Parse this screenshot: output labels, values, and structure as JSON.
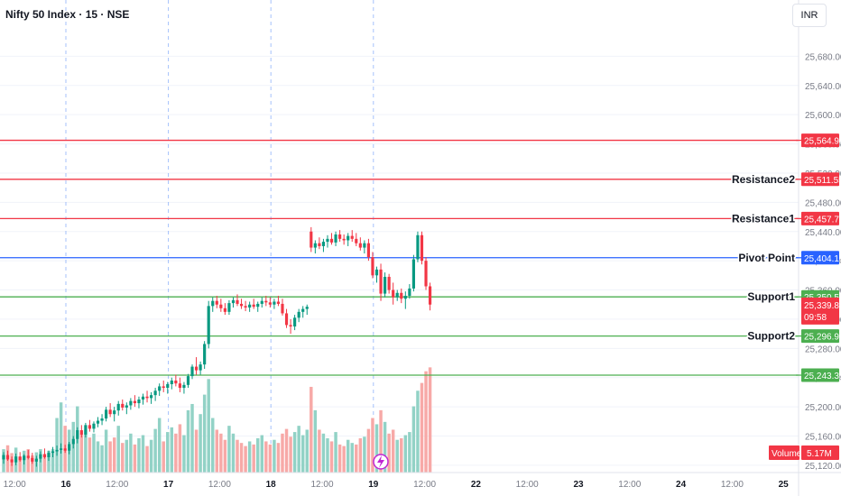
{
  "header": {
    "symbol": "Nifty 50 Index · 15 · NSE",
    "currency": "INR"
  },
  "colors": {
    "up": "#089981",
    "down": "#f23645",
    "resistance": "#f23645",
    "pivot": "#2962ff",
    "support": "#4caf50",
    "grid": "#f0f3fa",
    "session": "#5b8ff9",
    "text": "#131722",
    "axis_text": "#787b86",
    "volume_up": "#92d2c6",
    "volume_down": "#f7a9a7",
    "volume_tag": "#f23645"
  },
  "chart_data": {
    "type": "candlestick",
    "y_ticks": [
      "25,120.00",
      "25,160.00",
      "25,200.00",
      "25,240.00",
      "25,280.00",
      "25,320.00",
      "25,360.00",
      "25,400.00",
      "25,440.00",
      "25,480.00",
      "25,520.00",
      "25,560.00",
      "25,600.00",
      "25,640.00",
      "25,680.00"
    ],
    "y_tick_values": [
      25120,
      25160,
      25200,
      25240,
      25280,
      25320,
      25360,
      25400,
      25440,
      25480,
      25520,
      25560,
      25600,
      25640,
      25680
    ],
    "ylim": [
      25110,
      25720
    ],
    "x_ticks": [
      {
        "label": "12:00",
        "bold": false
      },
      {
        "label": "16",
        "bold": true
      },
      {
        "label": "12:00",
        "bold": false
      },
      {
        "label": "17",
        "bold": true
      },
      {
        "label": "12:00",
        "bold": false
      },
      {
        "label": "18",
        "bold": true
      },
      {
        "label": "12:00",
        "bold": false
      },
      {
        "label": "19",
        "bold": true
      },
      {
        "label": "12:00",
        "bold": false
      },
      {
        "label": "22",
        "bold": true
      },
      {
        "label": "12:00",
        "bold": false
      },
      {
        "label": "23",
        "bold": true
      },
      {
        "label": "12:00",
        "bold": false
      },
      {
        "label": "24",
        "bold": true
      },
      {
        "label": "12:00",
        "bold": false
      },
      {
        "label": "25",
        "bold": true
      }
    ],
    "session_markers": [
      "16",
      "17",
      "18",
      "19"
    ],
    "levels": [
      {
        "label": "",
        "value": 25564.95,
        "price": "25,564.95",
        "kind": "resistance"
      },
      {
        "label": "Resistance2",
        "value": 25511.55,
        "price": "25,511.55",
        "kind": "resistance"
      },
      {
        "label": "Resistance1",
        "value": 25457.75,
        "price": "25,457.75",
        "kind": "resistance"
      },
      {
        "label": "Pivot Point",
        "value": 25404.15,
        "price": "25,404.15",
        "kind": "pivot"
      },
      {
        "label": "Support1",
        "value": 25350.55,
        "price": "25,350.55",
        "kind": "support"
      },
      {
        "label": "Support2",
        "value": 25296.95,
        "price": "25,296.95",
        "kind": "support"
      },
      {
        "label": "",
        "value": 25243.35,
        "price": "25,243.35",
        "kind": "support"
      }
    ],
    "last_price": {
      "value": 25339.85,
      "price": "25,339.85",
      "countdown": "09:58"
    },
    "volume": {
      "label": "Volume",
      "value": "5.17M"
    },
    "candles_per_day": 25,
    "candles": [
      [
        25128,
        25138,
        25122,
        25134
      ],
      [
        25134,
        25140,
        25126,
        25128
      ],
      [
        25128,
        25132,
        25119,
        25124
      ],
      [
        25124,
        25136,
        25120,
        25132
      ],
      [
        25132,
        25138,
        25125,
        25127
      ],
      [
        25127,
        25135,
        25121,
        25133
      ],
      [
        25133,
        25141,
        25128,
        25130
      ],
      [
        25130,
        25137,
        25122,
        25125
      ],
      [
        25125,
        25133,
        25118,
        25129
      ],
      [
        25129,
        25139,
        25124,
        25135
      ],
      [
        25135,
        25143,
        25129,
        25131
      ],
      [
        25131,
        25140,
        25126,
        25137
      ],
      [
        25137,
        25145,
        25131,
        25139
      ],
      [
        25139,
        25147,
        25133,
        25141
      ],
      [
        25141,
        25150,
        25136,
        25143
      ],
      [
        25143,
        25148,
        25137,
        25140
      ],
      [
        25140,
        25152,
        25135,
        25149
      ],
      [
        25149,
        25160,
        25143,
        25156
      ],
      [
        25156,
        25172,
        25150,
        25168
      ],
      [
        25168,
        25175,
        25158,
        25162
      ],
      [
        25162,
        25178,
        25158,
        25175
      ],
      [
        25175,
        25182,
        25166,
        25170
      ],
      [
        25170,
        25180,
        25165,
        25177
      ],
      [
        25177,
        25186,
        25172,
        25181
      ],
      [
        25181,
        25190,
        25175,
        25184
      ],
      [
        25184,
        25200,
        25180,
        25196
      ],
      [
        25196,
        25205,
        25186,
        25190
      ],
      [
        25190,
        25200,
        25180,
        25195
      ],
      [
        25195,
        25208,
        25188,
        25204
      ],
      [
        25204,
        25210,
        25195,
        25199
      ],
      [
        25199,
        25206,
        25190,
        25202
      ],
      [
        25202,
        25212,
        25196,
        25208
      ],
      [
        25208,
        25216,
        25200,
        25205
      ],
      [
        25205,
        25214,
        25198,
        25210
      ],
      [
        25210,
        25218,
        25203,
        25214
      ],
      [
        25214,
        25222,
        25206,
        25212
      ],
      [
        25212,
        25220,
        25204,
        25216
      ],
      [
        25216,
        25226,
        25208,
        25222
      ],
      [
        25222,
        25232,
        25215,
        25228
      ],
      [
        25228,
        25236,
        25220,
        25226
      ],
      [
        25226,
        25234,
        25218,
        25231
      ],
      [
        25231,
        25240,
        25224,
        25236
      ],
      [
        25236,
        25244,
        25228,
        25232
      ],
      [
        25232,
        25240,
        25220,
        25226
      ],
      [
        25226,
        25234,
        25218,
        25230
      ],
      [
        25230,
        25245,
        25226,
        25242
      ],
      [
        25242,
        25258,
        25238,
        25255
      ],
      [
        25255,
        25268,
        25244,
        25250
      ],
      [
        25250,
        25262,
        25244,
        25258
      ],
      [
        25258,
        25290,
        25252,
        25286
      ],
      [
        25286,
        25345,
        25280,
        25338
      ],
      [
        25338,
        25350,
        25330,
        25345
      ],
      [
        25345,
        25352,
        25335,
        25340
      ],
      [
        25340,
        25348,
        25330,
        25335
      ],
      [
        25335,
        25342,
        25326,
        25330
      ],
      [
        25330,
        25346,
        25326,
        25342
      ],
      [
        25342,
        25350,
        25336,
        25346
      ],
      [
        25346,
        25354,
        25338,
        25341
      ],
      [
        25341,
        25348,
        25334,
        25338
      ],
      [
        25338,
        25345,
        25331,
        25336
      ],
      [
        25336,
        25344,
        25330,
        25340
      ],
      [
        25340,
        25348,
        25334,
        25337
      ],
      [
        25337,
        25344,
        25330,
        25341
      ],
      [
        25341,
        25350,
        25336,
        25345
      ],
      [
        25345,
        25352,
        25338,
        25343
      ],
      [
        25343,
        25350,
        25336,
        25340
      ],
      [
        25340,
        25348,
        25334,
        25344
      ],
      [
        25344,
        25352,
        25338,
        25341
      ],
      [
        25341,
        25348,
        25325,
        25328
      ],
      [
        25328,
        25334,
        25308,
        25312
      ],
      [
        25312,
        25320,
        25300,
        25310
      ],
      [
        25310,
        25326,
        25305,
        25322
      ],
      [
        25322,
        25334,
        25316,
        25330
      ],
      [
        25330,
        25338,
        25322,
        25334
      ],
      [
        25334,
        25340,
        25326,
        25337
      ],
      [
        25440,
        25446,
        25412,
        25418
      ],
      [
        25418,
        25428,
        25410,
        25424
      ],
      [
        25424,
        25432,
        25416,
        25420
      ],
      [
        25420,
        25430,
        25412,
        25426
      ],
      [
        25426,
        25435,
        25418,
        25430
      ],
      [
        25430,
        25438,
        25422,
        25425
      ],
      [
        25425,
        25440,
        25420,
        25436
      ],
      [
        25436,
        25442,
        25426,
        25430
      ],
      [
        25430,
        25436,
        25422,
        25428
      ],
      [
        25428,
        25438,
        25420,
        25434
      ],
      [
        25434,
        25442,
        25426,
        25430
      ],
      [
        25430,
        25438,
        25420,
        25424
      ],
      [
        25424,
        25432,
        25414,
        25418
      ],
      [
        25418,
        25428,
        25410,
        25424
      ],
      [
        25424,
        25430,
        25400,
        25405
      ],
      [
        25405,
        25412,
        25376,
        25380
      ],
      [
        25380,
        25392,
        25370,
        25388
      ],
      [
        25388,
        25396,
        25345,
        25355
      ],
      [
        25355,
        25384,
        25350,
        25378
      ],
      [
        25378,
        25382,
        25355,
        25360
      ],
      [
        25360,
        25370,
        25340,
        25350
      ],
      [
        25350,
        25360,
        25345,
        25356
      ],
      [
        25356,
        25362,
        25342,
        25348
      ],
      [
        25348,
        25358,
        25334,
        25352
      ],
      [
        25352,
        25368,
        25348,
        25362
      ],
      [
        25362,
        25408,
        25358,
        25402
      ],
      [
        25402,
        25440,
        25398,
        25435
      ],
      [
        25435,
        25440,
        25395,
        25400
      ],
      [
        25400,
        25405,
        25360,
        25365
      ],
      [
        25365,
        25370,
        25332,
        25340
      ]
    ],
    "volumes": [
      [
        0.3,
        1
      ],
      [
        0.35,
        0
      ],
      [
        0.25,
        0
      ],
      [
        0.32,
        1
      ],
      [
        0.2,
        0
      ],
      [
        0.28,
        1
      ],
      [
        0.3,
        0
      ],
      [
        0.22,
        0
      ],
      [
        0.26,
        1
      ],
      [
        0.3,
        1
      ],
      [
        0.24,
        0
      ],
      [
        0.28,
        1
      ],
      [
        0.3,
        1
      ],
      [
        0.7,
        1
      ],
      [
        0.9,
        1
      ],
      [
        0.6,
        0
      ],
      [
        0.55,
        1
      ],
      [
        0.65,
        1
      ],
      [
        0.85,
        1
      ],
      [
        0.5,
        0
      ],
      [
        0.55,
        1
      ],
      [
        0.45,
        0
      ],
      [
        0.5,
        1
      ],
      [
        0.4,
        1
      ],
      [
        0.35,
        1
      ],
      [
        0.55,
        1
      ],
      [
        0.4,
        0
      ],
      [
        0.45,
        0
      ],
      [
        0.6,
        1
      ],
      [
        0.38,
        0
      ],
      [
        0.42,
        1
      ],
      [
        0.5,
        1
      ],
      [
        0.36,
        0
      ],
      [
        0.44,
        1
      ],
      [
        0.48,
        1
      ],
      [
        0.34,
        0
      ],
      [
        0.42,
        1
      ],
      [
        0.56,
        1
      ],
      [
        0.7,
        1
      ],
      [
        0.4,
        0
      ],
      [
        0.52,
        1
      ],
      [
        0.58,
        1
      ],
      [
        0.5,
        0
      ],
      [
        0.62,
        0
      ],
      [
        0.48,
        1
      ],
      [
        0.8,
        1
      ],
      [
        0.88,
        1
      ],
      [
        0.55,
        0
      ],
      [
        0.75,
        1
      ],
      [
        1.0,
        1
      ],
      [
        1.2,
        1
      ],
      [
        0.7,
        1
      ],
      [
        0.55,
        0
      ],
      [
        0.5,
        0
      ],
      [
        0.42,
        0
      ],
      [
        0.6,
        1
      ],
      [
        0.5,
        1
      ],
      [
        0.42,
        0
      ],
      [
        0.38,
        0
      ],
      [
        0.34,
        0
      ],
      [
        0.4,
        1
      ],
      [
        0.36,
        0
      ],
      [
        0.44,
        1
      ],
      [
        0.48,
        1
      ],
      [
        0.4,
        0
      ],
      [
        0.36,
        0
      ],
      [
        0.42,
        1
      ],
      [
        0.38,
        0
      ],
      [
        0.5,
        0
      ],
      [
        0.56,
        0
      ],
      [
        0.46,
        0
      ],
      [
        0.52,
        1
      ],
      [
        0.6,
        1
      ],
      [
        0.48,
        1
      ],
      [
        0.55,
        1
      ],
      [
        1.1,
        0
      ],
      [
        0.8,
        1
      ],
      [
        0.55,
        0
      ],
      [
        0.5,
        1
      ],
      [
        0.44,
        1
      ],
      [
        0.4,
        0
      ],
      [
        0.52,
        1
      ],
      [
        0.36,
        0
      ],
      [
        0.34,
        0
      ],
      [
        0.42,
        1
      ],
      [
        0.38,
        1
      ],
      [
        0.36,
        0
      ],
      [
        0.44,
        0
      ],
      [
        0.46,
        1
      ],
      [
        0.56,
        0
      ],
      [
        0.7,
        0
      ],
      [
        0.62,
        1
      ],
      [
        0.8,
        0
      ],
      [
        0.65,
        1
      ],
      [
        0.5,
        0
      ],
      [
        0.55,
        0
      ],
      [
        0.42,
        1
      ],
      [
        0.44,
        0
      ],
      [
        0.48,
        1
      ],
      [
        0.52,
        1
      ],
      [
        0.85,
        1
      ],
      [
        1.05,
        1
      ],
      [
        1.15,
        0
      ],
      [
        1.3,
        0
      ],
      [
        1.35,
        0
      ]
    ]
  }
}
